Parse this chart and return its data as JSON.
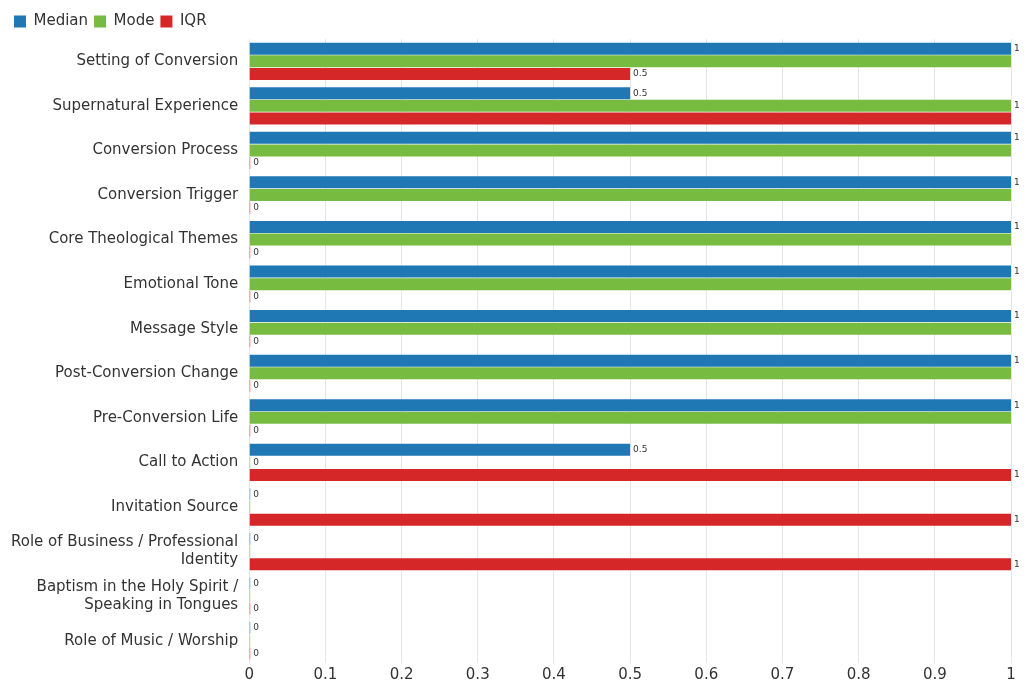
{
  "chart_data": {
    "type": "bar",
    "orientation": "horizontal",
    "categories": [
      "Setting of Conversion",
      "Supernatural Experience",
      "Conversion Process",
      "Conversion Trigger",
      "Core Theological Themes",
      "Emotional Tone",
      "Message Style",
      "Post-Conversion Change",
      "Pre-Conversion Life",
      "Call to Action",
      "Invitation Source",
      "Role of Business / Professional Identity",
      "Baptism in the Holy Spirit / Speaking in Tongues",
      "Role of Music / Worship"
    ],
    "series": [
      {
        "name": "Median",
        "color": "#1f77b4",
        "values": [
          1,
          0.5,
          1,
          1,
          1,
          1,
          1,
          1,
          1,
          0.5,
          0,
          0,
          0,
          0
        ],
        "value_labels": [
          "1",
          "0.5",
          "1",
          "1",
          "1",
          "1",
          "1",
          "1",
          "1",
          "0.5",
          "0",
          "0",
          "0",
          "0"
        ]
      },
      {
        "name": "Mode",
        "color": "#77bb41",
        "values": [
          1,
          1,
          1,
          1,
          1,
          1,
          1,
          1,
          1,
          0,
          0,
          0,
          0,
          0
        ],
        "value_labels": [
          null,
          "1",
          null,
          null,
          null,
          null,
          null,
          null,
          null,
          "0",
          null,
          null,
          null,
          null
        ]
      },
      {
        "name": "IQR",
        "color": "#d62728",
        "values": [
          0.5,
          1,
          0,
          0,
          0,
          0,
          0,
          0,
          0,
          1,
          1,
          1,
          0,
          0
        ],
        "value_labels": [
          "0.5",
          null,
          "0",
          "0",
          "0",
          "0",
          "0",
          "0",
          "0",
          "1",
          "1",
          "1",
          "0",
          "0"
        ]
      }
    ],
    "xlim": [
      0,
      1
    ],
    "xticks": [
      0,
      0.1,
      0.2,
      0.3,
      0.4,
      0.5,
      0.6,
      0.7,
      0.8,
      0.9,
      1
    ],
    "grid": "x",
    "legend": "top left"
  }
}
